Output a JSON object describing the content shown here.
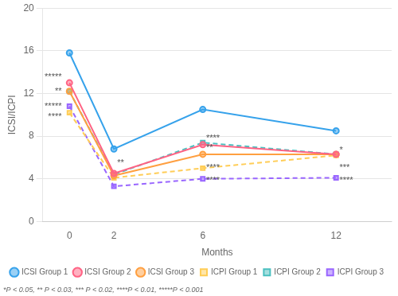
{
  "chart_data": {
    "type": "line",
    "xlabel": "Months",
    "ylabel": "ICSI/ICPI",
    "x": [
      0,
      2,
      6,
      12
    ],
    "series": [
      {
        "name": "ICSI Group 1",
        "values": [
          15.8,
          6.8,
          10.5,
          8.5
        ],
        "marker": "circle",
        "line_style": "solid"
      },
      {
        "name": "ICSI Group 2",
        "values": [
          13.0,
          4.5,
          7.2,
          6.3
        ],
        "marker": "circle",
        "line_style": "solid"
      },
      {
        "name": "ICSI Group 3",
        "values": [
          12.2,
          4.3,
          6.3,
          6.3
        ],
        "marker": "circle",
        "line_style": "solid"
      },
      {
        "name": "ICPI Group 1",
        "values": [
          10.2,
          4.1,
          5.0,
          6.2
        ],
        "marker": "square",
        "line_style": "dashed"
      },
      {
        "name": "ICPI Group 2",
        "values": [
          12.2,
          4.4,
          7.4,
          6.3
        ],
        "marker": "square",
        "line_style": "dashed"
      },
      {
        "name": "ICPI Group 3",
        "values": [
          10.8,
          3.3,
          4.0,
          4.1
        ],
        "marker": "square",
        "line_style": "dashed"
      }
    ],
    "xlim": [
      -1.2,
      14.5
    ],
    "xticks": [
      0,
      2,
      6,
      12
    ],
    "ylim": [
      0,
      20
    ],
    "yticks": [
      0,
      4,
      8,
      12,
      16,
      20
    ],
    "grid": "y",
    "legend": "bottom",
    "annotations": [
      {
        "text": "*****",
        "x": -0.35,
        "y": 13.5
      },
      {
        "text": "**",
        "x": -0.35,
        "y": 12.2
      },
      {
        "text": "*****",
        "x": -0.35,
        "y": 10.8
      },
      {
        "text": "****",
        "x": -0.35,
        "y": 9.8
      },
      {
        "text": "**",
        "x": 2.15,
        "y": 5.5
      },
      {
        "text": "****",
        "x": 6.15,
        "y": 7.8
      },
      {
        "text": "**",
        "x": 6.15,
        "y": 6.9
      },
      {
        "text": "****",
        "x": 6.15,
        "y": 5.0
      },
      {
        "text": "****",
        "x": 6.15,
        "y": 3.8
      },
      {
        "text": "*",
        "x": 12.15,
        "y": 6.7
      },
      {
        "text": "***",
        "x": 12.15,
        "y": 5.0
      },
      {
        "text": "****",
        "x": 12.15,
        "y": 3.8
      }
    ],
    "footnote": "*P < 0.05, ** P < 0.03, *** P < 0.02, ****P < 0.01, *****P < 0.001"
  }
}
